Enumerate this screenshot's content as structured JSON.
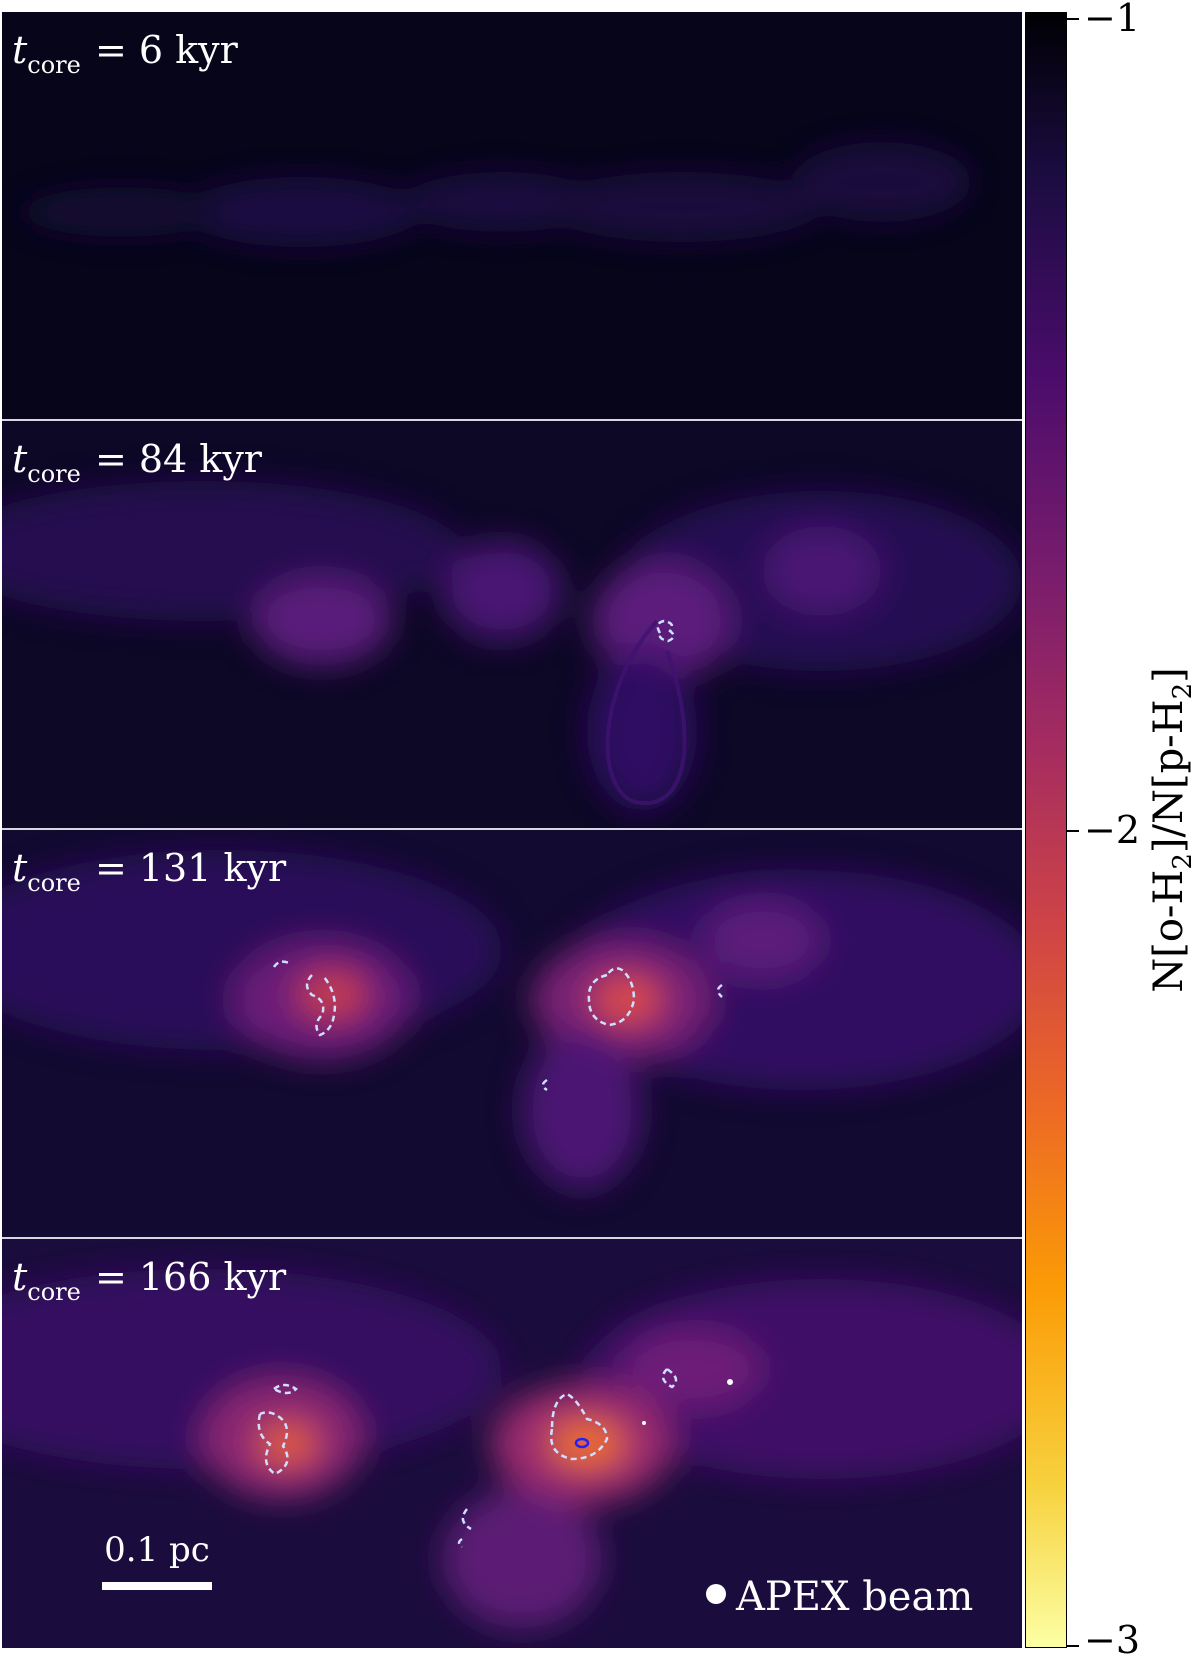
{
  "panels": [
    {
      "t_label_sub": "core",
      "value": "= 6 kyr"
    },
    {
      "t_label_sub": "core",
      "value": "= 84 kyr"
    },
    {
      "t_label_sub": "core",
      "value": "= 131 kyr"
    },
    {
      "t_label_sub": "core",
      "value": "= 166 kyr"
    }
  ],
  "scale_bar": {
    "label": "0.1 pc"
  },
  "beam": {
    "label": "APEX beam"
  },
  "colorbar": {
    "ticks": [
      "−1",
      "−2",
      "−3"
    ],
    "title_parts": {
      "a": "N[o-H",
      "sub1": "2",
      "b": "]/N[p-H",
      "sub2": "2",
      "c": "]"
    },
    "colormap": "inferno"
  }
}
